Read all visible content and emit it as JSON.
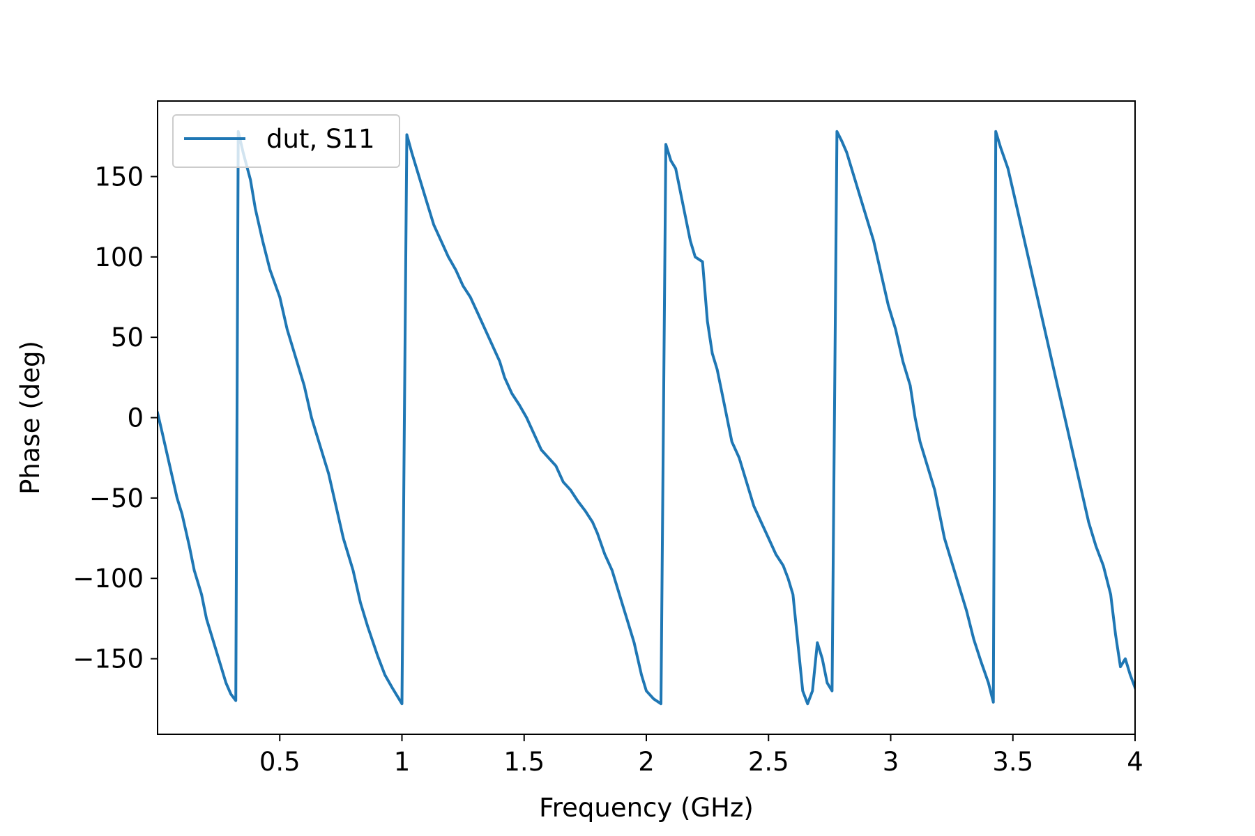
{
  "chart_data": {
    "type": "line",
    "title": "",
    "xlabel": "Frequency (GHz)",
    "ylabel": "Phase (deg)",
    "xlim": [
      0.0,
      4.0
    ],
    "ylim": [
      -197,
      197
    ],
    "x_ticks": [
      0.5,
      1,
      1.5,
      2,
      2.5,
      3,
      3.5,
      4
    ],
    "x_tick_labels": [
      "0.5",
      "1",
      "1.5",
      "2",
      "2.5",
      "3",
      "3.5",
      "4"
    ],
    "y_ticks": [
      -150,
      -100,
      -50,
      0,
      50,
      100,
      150
    ],
    "y_tick_labels": [
      "−150",
      "−100",
      "−50",
      "0",
      "50",
      "100",
      "150"
    ],
    "grid": false,
    "legend_position": "top-left",
    "series": [
      {
        "name": "dut, S11",
        "color": "#1f77b4",
        "points": [
          [
            0.0,
            3
          ],
          [
            0.02,
            -10
          ],
          [
            0.05,
            -30
          ],
          [
            0.08,
            -50
          ],
          [
            0.1,
            -60
          ],
          [
            0.13,
            -80
          ],
          [
            0.15,
            -95
          ],
          [
            0.18,
            -110
          ],
          [
            0.2,
            -125
          ],
          [
            0.23,
            -140
          ],
          [
            0.26,
            -155
          ],
          [
            0.28,
            -165
          ],
          [
            0.3,
            -172
          ],
          [
            0.32,
            -176
          ],
          [
            0.33,
            178
          ],
          [
            0.35,
            165
          ],
          [
            0.38,
            148
          ],
          [
            0.4,
            130
          ],
          [
            0.43,
            110
          ],
          [
            0.46,
            92
          ],
          [
            0.5,
            75
          ],
          [
            0.53,
            55
          ],
          [
            0.56,
            40
          ],
          [
            0.6,
            20
          ],
          [
            0.63,
            0
          ],
          [
            0.66,
            -15
          ],
          [
            0.7,
            -35
          ],
          [
            0.73,
            -55
          ],
          [
            0.76,
            -75
          ],
          [
            0.8,
            -95
          ],
          [
            0.83,
            -115
          ],
          [
            0.86,
            -130
          ],
          [
            0.9,
            -148
          ],
          [
            0.93,
            -160
          ],
          [
            0.96,
            -168
          ],
          [
            1.0,
            -178
          ],
          [
            1.02,
            176
          ],
          [
            1.04,
            165
          ],
          [
            1.07,
            150
          ],
          [
            1.1,
            135
          ],
          [
            1.13,
            120
          ],
          [
            1.16,
            110
          ],
          [
            1.19,
            100
          ],
          [
            1.22,
            92
          ],
          [
            1.25,
            82
          ],
          [
            1.28,
            75
          ],
          [
            1.31,
            65
          ],
          [
            1.34,
            55
          ],
          [
            1.37,
            45
          ],
          [
            1.4,
            35
          ],
          [
            1.42,
            25
          ],
          [
            1.45,
            15
          ],
          [
            1.48,
            8
          ],
          [
            1.51,
            0
          ],
          [
            1.54,
            -10
          ],
          [
            1.57,
            -20
          ],
          [
            1.6,
            -25
          ],
          [
            1.63,
            -30
          ],
          [
            1.66,
            -40
          ],
          [
            1.69,
            -45
          ],
          [
            1.72,
            -52
          ],
          [
            1.75,
            -58
          ],
          [
            1.78,
            -65
          ],
          [
            1.8,
            -72
          ],
          [
            1.83,
            -85
          ],
          [
            1.86,
            -95
          ],
          [
            1.89,
            -110
          ],
          [
            1.92,
            -125
          ],
          [
            1.95,
            -140
          ],
          [
            1.98,
            -160
          ],
          [
            2.0,
            -170
          ],
          [
            2.03,
            -175
          ],
          [
            2.06,
            -178
          ],
          [
            2.08,
            170
          ],
          [
            2.1,
            160
          ],
          [
            2.12,
            155
          ],
          [
            2.14,
            140
          ],
          [
            2.16,
            125
          ],
          [
            2.18,
            110
          ],
          [
            2.2,
            100
          ],
          [
            2.23,
            97
          ],
          [
            2.25,
            60
          ],
          [
            2.27,
            40
          ],
          [
            2.29,
            30
          ],
          [
            2.31,
            15
          ],
          [
            2.33,
            0
          ],
          [
            2.35,
            -15
          ],
          [
            2.38,
            -25
          ],
          [
            2.41,
            -40
          ],
          [
            2.44,
            -55
          ],
          [
            2.47,
            -65
          ],
          [
            2.5,
            -75
          ],
          [
            2.53,
            -85
          ],
          [
            2.56,
            -92
          ],
          [
            2.58,
            -100
          ],
          [
            2.6,
            -110
          ],
          [
            2.62,
            -140
          ],
          [
            2.64,
            -170
          ],
          [
            2.66,
            -178
          ],
          [
            2.68,
            -170
          ],
          [
            2.7,
            -140
          ],
          [
            2.72,
            -150
          ],
          [
            2.74,
            -165
          ],
          [
            2.76,
            -170
          ],
          [
            2.78,
            178
          ],
          [
            2.8,
            172
          ],
          [
            2.82,
            165
          ],
          [
            2.85,
            150
          ],
          [
            2.87,
            140
          ],
          [
            2.9,
            125
          ],
          [
            2.93,
            110
          ],
          [
            2.96,
            90
          ],
          [
            2.99,
            70
          ],
          [
            3.02,
            55
          ],
          [
            3.05,
            35
          ],
          [
            3.08,
            20
          ],
          [
            3.1,
            0
          ],
          [
            3.12,
            -15
          ],
          [
            3.15,
            -30
          ],
          [
            3.18,
            -45
          ],
          [
            3.2,
            -60
          ],
          [
            3.22,
            -75
          ],
          [
            3.25,
            -90
          ],
          [
            3.28,
            -105
          ],
          [
            3.31,
            -120
          ],
          [
            3.34,
            -138
          ],
          [
            3.37,
            -152
          ],
          [
            3.4,
            -165
          ],
          [
            3.42,
            -177
          ],
          [
            3.43,
            178
          ],
          [
            3.45,
            168
          ],
          [
            3.48,
            155
          ],
          [
            3.51,
            135
          ],
          [
            3.54,
            115
          ],
          [
            3.57,
            95
          ],
          [
            3.6,
            75
          ],
          [
            3.63,
            55
          ],
          [
            3.66,
            35
          ],
          [
            3.69,
            15
          ],
          [
            3.72,
            -5
          ],
          [
            3.75,
            -25
          ],
          [
            3.78,
            -45
          ],
          [
            3.81,
            -65
          ],
          [
            3.84,
            -80
          ],
          [
            3.87,
            -92
          ],
          [
            3.9,
            -110
          ],
          [
            3.92,
            -135
          ],
          [
            3.94,
            -155
          ],
          [
            3.96,
            -150
          ],
          [
            3.98,
            -160
          ],
          [
            4.0,
            -168
          ]
        ]
      }
    ]
  }
}
